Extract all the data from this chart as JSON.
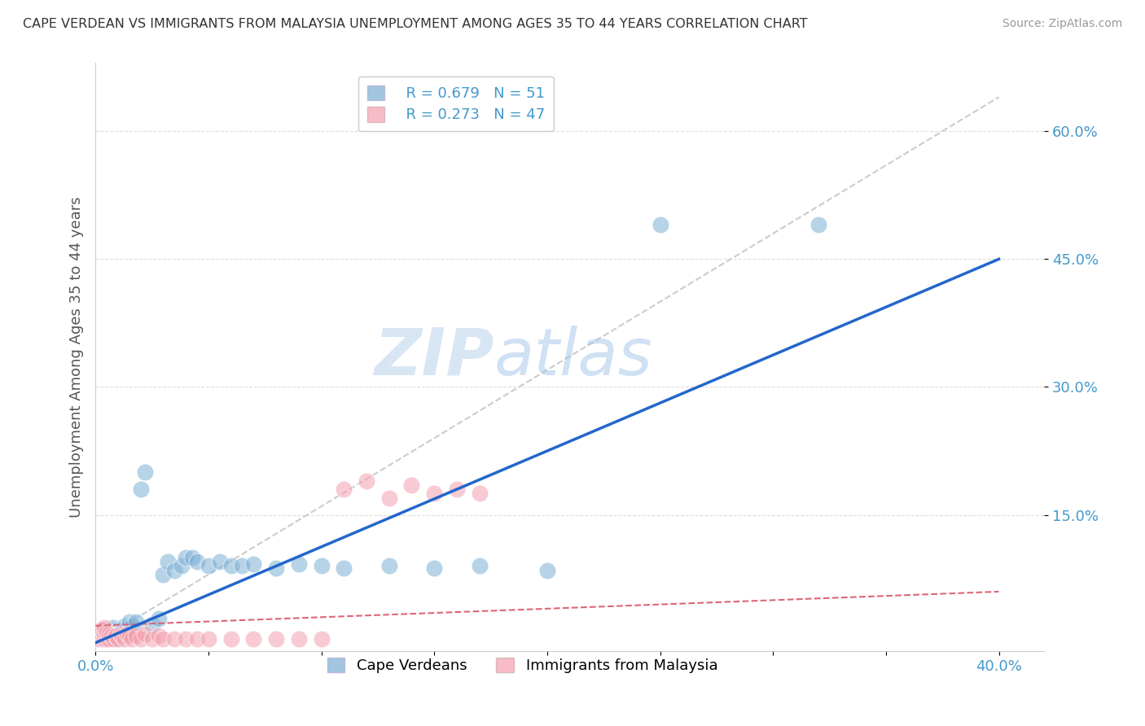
{
  "title": "CAPE VERDEAN VS IMMIGRANTS FROM MALAYSIA UNEMPLOYMENT AMONG AGES 35 TO 44 YEARS CORRELATION CHART",
  "source": "Source: ZipAtlas.com",
  "ylabel": "Unemployment Among Ages 35 to 44 years",
  "xlim": [
    0.0,
    0.42
  ],
  "ylim": [
    -0.01,
    0.68
  ],
  "xtick_positions": [
    0.0,
    0.05,
    0.1,
    0.15,
    0.2,
    0.25,
    0.3,
    0.35,
    0.4
  ],
  "xticklabels": [
    "0.0%",
    "",
    "",
    "",
    "",
    "",
    "",
    "",
    "40.0%"
  ],
  "ytick_positions": [
    0.15,
    0.3,
    0.45,
    0.6
  ],
  "yticklabels": [
    "15.0%",
    "30.0%",
    "45.0%",
    "60.0%"
  ],
  "legend_R1": "R = 0.679",
  "legend_N1": "N = 51",
  "legend_R2": "R = 0.273",
  "legend_N2": "N = 47",
  "blue_color": "#7BAFD4",
  "pink_color": "#F4A0B0",
  "line_blue": "#2266CC",
  "line_pink": "#DD6677",
  "line_gray": "#CCCCCC",
  "watermark_zip": "ZIP",
  "watermark_atlas": "atlas",
  "blue_x": [
    0.001,
    0.002,
    0.002,
    0.003,
    0.003,
    0.004,
    0.004,
    0.005,
    0.005,
    0.006,
    0.006,
    0.007,
    0.007,
    0.008,
    0.008,
    0.009,
    0.01,
    0.01,
    0.011,
    0.012,
    0.013,
    0.014,
    0.015,
    0.016,
    0.018,
    0.02,
    0.022,
    0.025,
    0.028,
    0.03,
    0.032,
    0.035,
    0.038,
    0.04,
    0.043,
    0.045,
    0.05,
    0.055,
    0.06,
    0.065,
    0.07,
    0.08,
    0.09,
    0.1,
    0.11,
    0.13,
    0.15,
    0.17,
    0.2,
    0.25,
    0.32
  ],
  "blue_y": [
    0.005,
    0.008,
    0.012,
    0.005,
    0.01,
    0.008,
    0.015,
    0.005,
    0.01,
    0.005,
    0.012,
    0.008,
    0.015,
    0.01,
    0.018,
    0.005,
    0.01,
    0.015,
    0.012,
    0.015,
    0.02,
    0.018,
    0.025,
    0.02,
    0.025,
    0.18,
    0.2,
    0.022,
    0.028,
    0.08,
    0.095,
    0.085,
    0.09,
    0.1,
    0.1,
    0.095,
    0.09,
    0.095,
    0.09,
    0.09,
    0.092,
    0.088,
    0.092,
    0.09,
    0.088,
    0.09,
    0.088,
    0.09,
    0.085,
    0.49,
    0.49
  ],
  "pink_x": [
    0.001,
    0.001,
    0.002,
    0.002,
    0.002,
    0.003,
    0.003,
    0.003,
    0.004,
    0.004,
    0.004,
    0.005,
    0.005,
    0.006,
    0.006,
    0.007,
    0.008,
    0.009,
    0.01,
    0.011,
    0.012,
    0.013,
    0.014,
    0.015,
    0.016,
    0.018,
    0.02,
    0.022,
    0.025,
    0.028,
    0.03,
    0.035,
    0.04,
    0.045,
    0.05,
    0.06,
    0.07,
    0.08,
    0.09,
    0.1,
    0.11,
    0.12,
    0.13,
    0.14,
    0.15,
    0.16,
    0.17
  ],
  "pink_y": [
    0.005,
    0.008,
    0.005,
    0.01,
    0.015,
    0.005,
    0.008,
    0.015,
    0.005,
    0.01,
    0.018,
    0.005,
    0.012,
    0.005,
    0.01,
    0.008,
    0.005,
    0.008,
    0.005,
    0.01,
    0.008,
    0.005,
    0.01,
    0.008,
    0.005,
    0.008,
    0.005,
    0.01,
    0.005,
    0.008,
    0.005,
    0.005,
    0.005,
    0.005,
    0.005,
    0.005,
    0.005,
    0.005,
    0.005,
    0.005,
    0.18,
    0.19,
    0.17,
    0.185,
    0.175,
    0.18,
    0.175
  ],
  "blue_line_x": [
    0.0,
    0.4
  ],
  "blue_line_y": [
    0.0,
    0.45
  ],
  "pink_line_x": [
    0.0,
    0.4
  ],
  "pink_line_y": [
    0.02,
    0.06
  ],
  "gray_line_x": [
    0.0,
    0.4
  ],
  "gray_line_y": [
    0.0,
    0.64
  ]
}
